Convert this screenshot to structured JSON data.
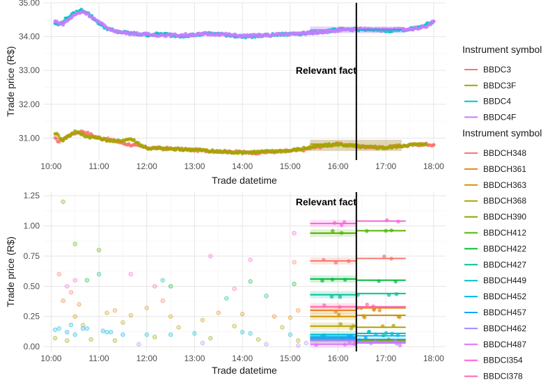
{
  "chart_data": [
    {
      "type": "scatter",
      "xlabel": "Trade datetime",
      "ylabel": "Trade price (R$)",
      "x_ticks": [
        "10:00",
        "11:00",
        "12:00",
        "13:00",
        "14:00",
        "15:00",
        "16:00",
        "17:00",
        "18:00"
      ],
      "y_ticks": [
        "31.00",
        "32.00",
        "33.00",
        "34.00",
        "35.00"
      ],
      "xlim": [
        "09:50",
        "18:15"
      ],
      "ylim": [
        30.35,
        35.0
      ],
      "grid": true,
      "vline": "16:23",
      "annotation": {
        "text": "Relevant fact",
        "x": "15:45",
        "y": 33.0
      },
      "series": [
        {
          "name": "BBDC3",
          "color": "#F8766D",
          "x": [
            "10:05",
            "10:10",
            "10:20",
            "10:30",
            "10:40",
            "10:50",
            "11:00",
            "11:15",
            "11:30",
            "11:45",
            "12:00",
            "12:20",
            "12:40",
            "13:00",
            "13:20",
            "13:40",
            "14:00",
            "14:20",
            "14:40",
            "15:00",
            "15:15",
            "15:30",
            "15:45",
            "16:00",
            "16:15",
            "16:30",
            "16:45",
            "17:00",
            "17:15",
            "17:45",
            "18:00"
          ],
          "y": [
            30.98,
            30.9,
            31.05,
            31.15,
            31.2,
            31.1,
            31.0,
            30.95,
            30.85,
            30.78,
            30.72,
            30.7,
            30.67,
            30.65,
            30.62,
            30.6,
            30.58,
            30.57,
            30.6,
            30.62,
            30.65,
            30.72,
            30.78,
            30.82,
            30.78,
            30.75,
            30.73,
            30.72,
            30.76,
            30.82,
            30.8
          ]
        },
        {
          "name": "BBDC3F",
          "color": "#A3A500",
          "x": [
            "10:05",
            "10:15",
            "10:30",
            "10:45",
            "11:00",
            "11:20",
            "11:40",
            "12:00",
            "12:30",
            "13:00",
            "13:30",
            "14:00",
            "14:30",
            "15:00",
            "15:30",
            "16:00",
            "16:30",
            "17:00",
            "17:30",
            "17:50"
          ],
          "y": [
            31.15,
            30.95,
            31.2,
            31.05,
            31.0,
            30.9,
            30.98,
            30.7,
            30.68,
            30.66,
            30.6,
            30.58,
            30.6,
            30.63,
            30.75,
            30.82,
            30.74,
            30.72,
            30.8,
            30.82
          ]
        },
        {
          "name": "BBDC4",
          "color": "#00BFC4",
          "x": [
            "10:05",
            "10:10",
            "10:20",
            "10:30",
            "10:38",
            "10:45",
            "10:55",
            "11:05",
            "11:20",
            "11:40",
            "12:00",
            "12:20",
            "12:40",
            "13:00",
            "13:20",
            "13:40",
            "14:00",
            "14:20",
            "14:40",
            "15:00",
            "15:20",
            "15:40",
            "16:00",
            "16:20",
            "16:40",
            "17:00",
            "17:20",
            "17:40",
            "18:00"
          ],
          "y": [
            34.4,
            34.35,
            34.55,
            34.7,
            34.78,
            34.72,
            34.5,
            34.3,
            34.15,
            34.1,
            34.05,
            34.08,
            34.02,
            34.05,
            34.1,
            34.05,
            34.0,
            34.02,
            34.05,
            34.08,
            34.1,
            34.15,
            34.2,
            34.22,
            34.2,
            34.18,
            34.2,
            34.25,
            34.45
          ]
        },
        {
          "name": "BBDC4F",
          "color": "#C77CFF",
          "x": [
            "10:05",
            "10:15",
            "10:30",
            "10:40",
            "10:50",
            "11:00",
            "11:15",
            "11:30",
            "11:50",
            "12:10",
            "12:30",
            "13:00",
            "13:30",
            "14:00",
            "14:30",
            "15:00",
            "15:30",
            "16:00",
            "16:30",
            "17:00",
            "17:30",
            "17:50",
            "18:00"
          ],
          "y": [
            34.45,
            34.38,
            34.65,
            34.75,
            34.6,
            34.42,
            34.2,
            34.12,
            34.08,
            34.05,
            34.04,
            34.06,
            34.08,
            34.02,
            34.04,
            34.08,
            34.12,
            34.18,
            34.22,
            34.2,
            34.22,
            34.3,
            34.45
          ]
        }
      ],
      "legend": {
        "title": "Instrument symbol",
        "placement": "right",
        "entries": [
          "BBDC3",
          "BBDC3F",
          "BBDC4",
          "BBDC4F"
        ]
      }
    },
    {
      "type": "scatter",
      "xlabel": "Trade datetime",
      "ylabel": "Trade price (R$)",
      "x_ticks": [
        "10:00",
        "11:00",
        "12:00",
        "13:00",
        "14:00",
        "15:00",
        "16:00",
        "17:00",
        "18:00"
      ],
      "y_ticks": [
        "0.00",
        "0.25",
        "0.50",
        "0.75",
        "1.00",
        "1.25"
      ],
      "xlim": [
        "09:50",
        "18:15"
      ],
      "ylim": [
        -0.04,
        1.28
      ],
      "grid": true,
      "vline": "16:23",
      "annotation": {
        "text": "Relevant fact",
        "x": "15:45",
        "y": 1.2
      },
      "series": [
        {
          "name": "BBDCH348",
          "color": "#F8766D",
          "pre_x": [
            "10:10",
            "10:25",
            "12:20",
            "15:05"
          ],
          "pre_y": [
            0.6,
            0.45,
            0.38,
            0.7
          ],
          "seg_before": 0.71,
          "seg_after": 0.73
        },
        {
          "name": "BBDCH361",
          "color": "#E7861B",
          "pre_x": [
            "10:15",
            "10:35",
            "11:20",
            "12:00",
            "13:30",
            "14:40",
            "15:10"
          ],
          "pre_y": [
            0.38,
            0.35,
            0.3,
            0.32,
            0.28,
            0.25,
            0.3
          ],
          "seg_before": 0.3,
          "seg_after": 0.32
        },
        {
          "name": "BBDCH363",
          "color": "#D09400",
          "pre_x": [
            "10:30",
            "11:10",
            "11:40",
            "12:30",
            "13:10",
            "14:00",
            "15:00"
          ],
          "pre_y": [
            0.25,
            0.28,
            0.26,
            0.25,
            0.22,
            0.27,
            0.24
          ],
          "seg_before": 0.25,
          "seg_after": 0.26
        },
        {
          "name": "BBDCH368",
          "color": "#B2A100",
          "pre_x": [
            "10:40",
            "11:30",
            "12:40",
            "13:50",
            "14:50"
          ],
          "pre_y": [
            0.18,
            0.2,
            0.16,
            0.17,
            0.16
          ],
          "seg_before": 0.17,
          "seg_after": 0.16
        },
        {
          "name": "BBDCH390",
          "color": "#8BA700",
          "pre_x": [
            "10:05",
            "10:20",
            "10:50",
            "11:20",
            "12:10",
            "13:20",
            "14:20",
            "15:10"
          ],
          "pre_y": [
            0.07,
            0.05,
            0.06,
            0.05,
            0.08,
            0.07,
            0.06,
            0.05
          ],
          "seg_before": 0.06,
          "seg_after": 0.05
        },
        {
          "name": "BBDCH412",
          "color": "#53B400",
          "pre_x": [
            "10:15",
            "10:30",
            "11:00"
          ],
          "pre_y": [
            1.2,
            0.85,
            0.8
          ],
          "seg_before": 0.94,
          "seg_after": 0.96
        },
        {
          "name": "BBDCH422",
          "color": "#00BA38",
          "pre_x": [
            "10:45",
            "12:30",
            "14:10",
            "15:05"
          ],
          "pre_y": [
            0.55,
            0.5,
            0.54,
            0.52
          ],
          "seg_before": 0.56,
          "seg_after": 0.55
        },
        {
          "name": "BBDCH427",
          "color": "#00C094",
          "pre_x": [
            "11:00",
            "12:20",
            "13:40",
            "14:30"
          ],
          "pre_y": [
            0.6,
            0.55,
            0.4,
            0.42
          ],
          "seg_before": 0.43,
          "seg_after": 0.44
        },
        {
          "name": "BBDCH449",
          "color": "#00BFC4",
          "pre_x": [
            "10:10",
            "10:30",
            "11:10",
            "12:00",
            "13:00",
            "14:00",
            "15:00"
          ],
          "pre_y": [
            0.15,
            0.1,
            0.12,
            0.1,
            0.11,
            0.12,
            0.1
          ],
          "seg_before": 0.1,
          "seg_after": 0.11
        },
        {
          "name": "BBDCH452",
          "color": "#00B6EB",
          "pre_x": [
            "10:05",
            "10:25",
            "10:45",
            "11:15",
            "12:30",
            "14:10"
          ],
          "pre_y": [
            0.14,
            0.18,
            0.15,
            0.12,
            0.1,
            0.11
          ],
          "seg_before": 0.08,
          "seg_after": 0.09
        },
        {
          "name": "BBDCH457",
          "color": "#06A4FF",
          "pre_x": [
            "10:20",
            "10:40",
            "11:05",
            "11:30"
          ],
          "pre_y": [
            0.12,
            0.15,
            0.13,
            0.1
          ],
          "seg_before": 0.07,
          "seg_after": 0.06
        },
        {
          "name": "BBDCH462",
          "color": "#A58AFF",
          "pre_x": [
            "11:50",
            "13:10",
            "14:30",
            "15:20"
          ],
          "pre_y": [
            0.02,
            0.03,
            0.02,
            0.03
          ],
          "seg_before": 0.05,
          "seg_after": 0.04
        },
        {
          "name": "BBDCH487",
          "color": "#DF70F8",
          "pre_x": [
            "15:10"
          ],
          "pre_y": [
            0.01
          ],
          "seg_before": 0.02,
          "seg_after": 0.03
        },
        {
          "name": "BBDCI354",
          "color": "#FB61D7",
          "pre_x": [
            "10:20",
            "11:40",
            "13:20",
            "14:10",
            "15:05"
          ],
          "pre_y": [
            0.5,
            0.6,
            0.75,
            0.72,
            0.94
          ],
          "seg_before": 1.02,
          "seg_after": 1.04
        },
        {
          "name": "BBDCI378",
          "color": "#FF66A8",
          "pre_x": [
            "10:30",
            "12:10",
            "13:50"
          ],
          "pre_y": [
            0.55,
            0.5,
            0.48
          ],
          "seg_before": 0.33,
          "seg_after": 0.33
        }
      ],
      "legend": {
        "title": "Instrument symbol",
        "placement": "right",
        "entries": [
          "BBDCH348",
          "BBDCH361",
          "BBDCH363",
          "BBDCH368",
          "BBDCH390",
          "BBDCH412",
          "BBDCH422",
          "BBDCH427",
          "BBDCH449",
          "BBDCH452",
          "BBDCH457",
          "BBDCH462",
          "BBDCH487",
          "BBDCI354",
          "BBDCI378"
        ]
      }
    }
  ]
}
